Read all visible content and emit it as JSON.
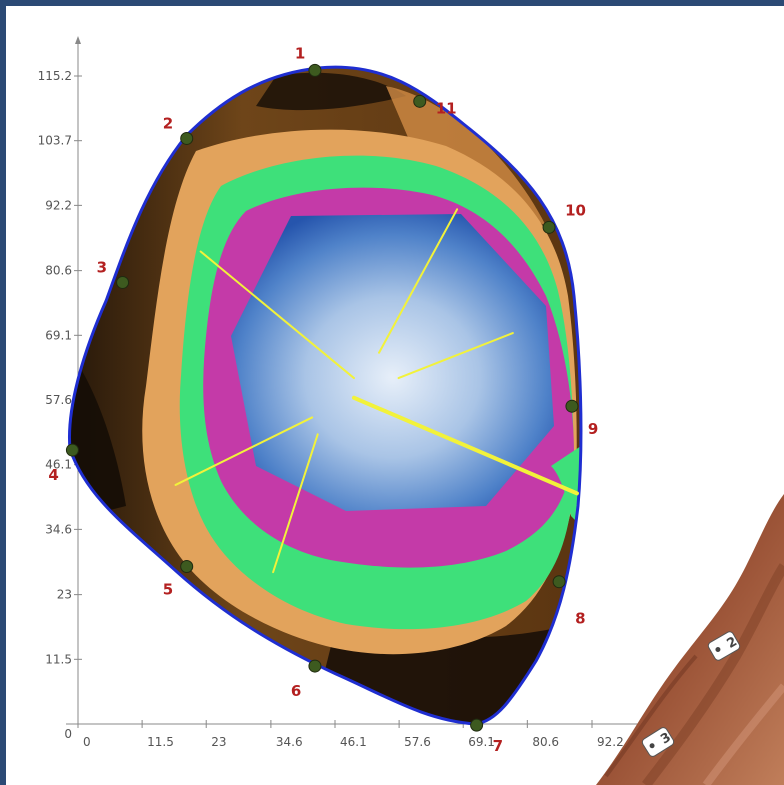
{
  "colors": {
    "frame": "#2b4a75",
    "background": "#ffffff",
    "outline": "#1f2ed1",
    "rays": "#f2f23a",
    "point_markers": "#3d5a1f",
    "label_color": "#b32020",
    "zones": {
      "outer_dark": "#2a1a0c",
      "outer_brown": "#9a6428",
      "orange": "#e0a055",
      "green": "#3ee07a",
      "magenta": "#c43aa8",
      "blue_edge": "#2f5fb5",
      "blue_center": "#dfe9f6"
    }
  },
  "chart_data": {
    "type": "scatter",
    "x_ticks": [
      "0",
      "11.5",
      "23",
      "34.6",
      "46.1",
      "57.6",
      "69.1",
      "80.6",
      "92.2"
    ],
    "y_ticks": [
      "0",
      "11.5",
      "23",
      "34.6",
      "46.1",
      "57.6",
      "69.1",
      "80.6",
      "92.2",
      "103.7",
      "115.2"
    ],
    "xlim": [
      0,
      92.2
    ],
    "ylim": [
      0,
      115.2
    ],
    "points": [
      {
        "label": "1",
        "x": 42.5,
        "y": 116.2
      },
      {
        "label": "2",
        "x": 19.5,
        "y": 104.1
      },
      {
        "label": "3",
        "x": 8.0,
        "y": 78.5
      },
      {
        "label": "4",
        "x": -1.0,
        "y": 48.7
      },
      {
        "label": "5",
        "x": 19.5,
        "y": 28.0
      },
      {
        "label": "6",
        "x": 42.5,
        "y": 10.3
      },
      {
        "label": "7",
        "x": 71.5,
        "y": -0.2
      },
      {
        "label": "8",
        "x": 86.3,
        "y": 25.3
      },
      {
        "label": "9",
        "x": 88.6,
        "y": 56.5
      },
      {
        "label": "10",
        "x": 84.5,
        "y": 88.3
      },
      {
        "label": "11",
        "x": 61.3,
        "y": 110.7
      }
    ],
    "rays": [
      {
        "from": [
          49.5,
          61.5
        ],
        "to": [
          22.0,
          84.0
        ]
      },
      {
        "from": [
          54.0,
          66.0
        ],
        "to": [
          68.0,
          91.5
        ]
      },
      {
        "from": [
          57.5,
          61.5
        ],
        "to": [
          78.0,
          69.5
        ]
      },
      {
        "from": [
          49.5,
          58.0
        ],
        "to": [
          89.5,
          41.0
        ]
      },
      {
        "from": [
          43.0,
          51.5
        ],
        "to": [
          35.0,
          27.0
        ]
      },
      {
        "from": [
          42.0,
          54.5
        ],
        "to": [
          17.5,
          42.5
        ]
      }
    ],
    "map_markers": [
      {
        "label": "2"
      },
      {
        "label": "3"
      }
    ]
  }
}
